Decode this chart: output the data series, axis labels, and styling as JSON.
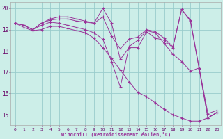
{
  "xlabel": "Windchill (Refroidissement éolien,°C)",
  "bg_color": "#cceee8",
  "line_color": "#993399",
  "grid_color": "#99cccc",
  "xlim": [
    -0.5,
    23.5
  ],
  "ylim": [
    14.5,
    20.3
  ],
  "yticks": [
    15,
    16,
    17,
    18,
    19,
    20
  ],
  "xticks": [
    0,
    1,
    2,
    3,
    4,
    5,
    6,
    7,
    8,
    9,
    10,
    11,
    12,
    13,
    14,
    15,
    16,
    17,
    18,
    19,
    20,
    21,
    22,
    23
  ],
  "lines": [
    [
      19.3,
      19.2,
      19.0,
      19.3,
      19.45,
      19.5,
      19.5,
      19.4,
      19.35,
      19.3,
      20.0,
      19.3,
      17.6,
      18.15,
      18.15,
      18.9,
      18.6,
      18.5,
      18.15,
      19.95,
      19.4,
      17.15,
      14.85,
      15.1
    ],
    [
      19.3,
      19.2,
      19.0,
      19.3,
      19.5,
      19.6,
      19.6,
      19.5,
      19.4,
      19.3,
      19.6,
      18.7,
      18.1,
      18.55,
      18.65,
      19.0,
      18.9,
      18.6,
      18.2,
      19.95,
      19.45,
      17.2,
      14.85,
      15.1
    ],
    [
      19.3,
      19.2,
      19.0,
      19.2,
      19.35,
      19.3,
      19.2,
      19.1,
      19.0,
      18.85,
      18.55,
      17.5,
      16.3,
      18.2,
      18.5,
      18.95,
      18.85,
      18.35,
      17.85,
      17.5,
      17.05,
      17.2,
      15.05,
      15.2
    ],
    [
      19.3,
      19.1,
      18.95,
      19.0,
      19.15,
      19.15,
      19.05,
      18.95,
      18.85,
      18.6,
      18.15,
      17.65,
      17.1,
      16.55,
      16.05,
      15.85,
      15.55,
      15.25,
      15.0,
      14.85,
      14.7,
      14.7,
      14.85,
      15.1
    ]
  ]
}
